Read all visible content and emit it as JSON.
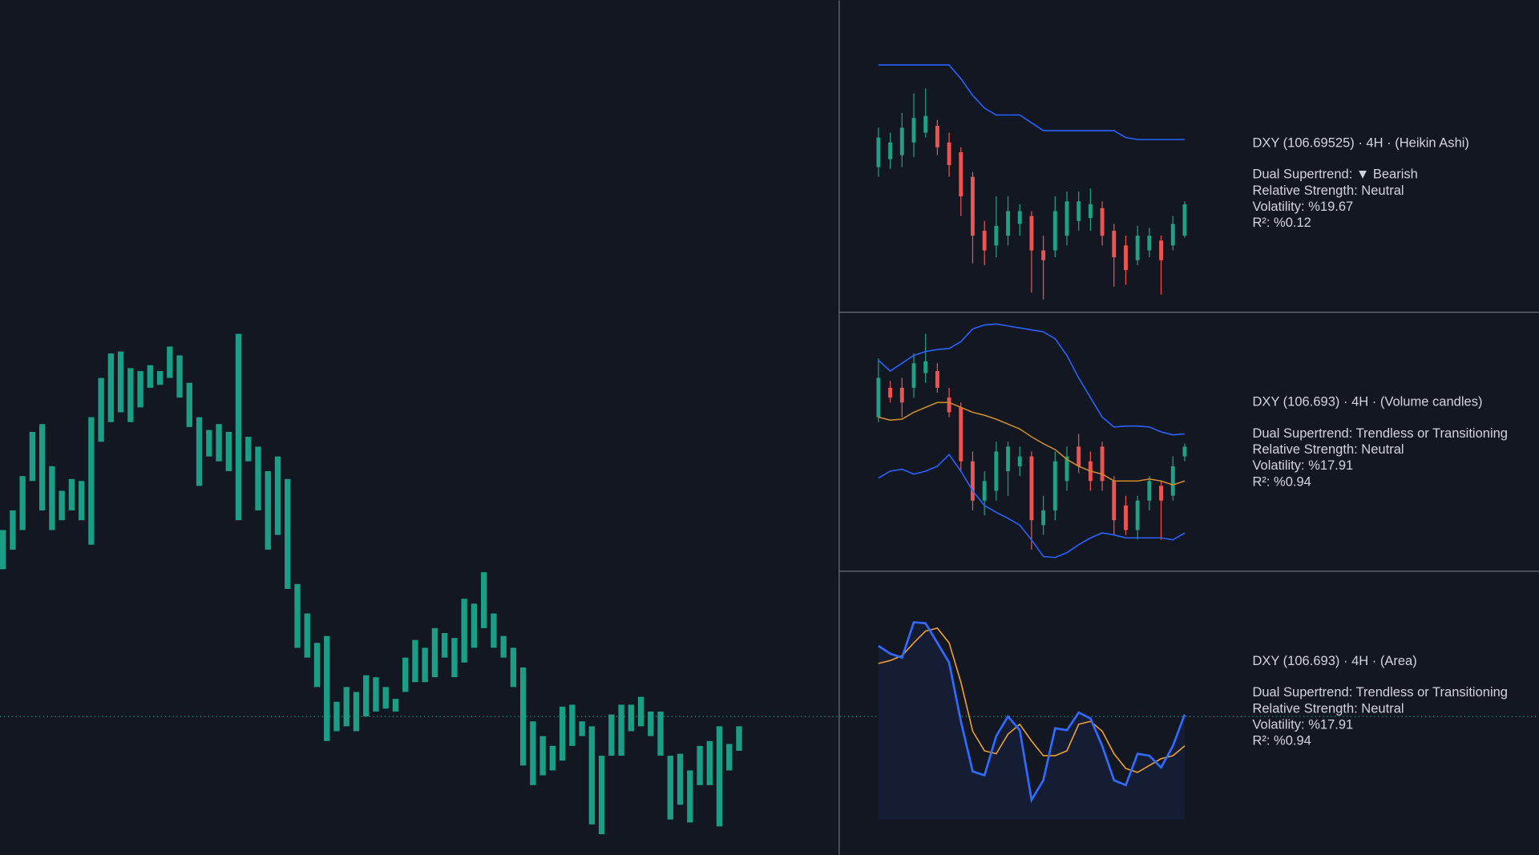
{
  "chart_data": [
    {
      "type": "range_bar",
      "color": "#1a9e85",
      "ylim": [
        129,
        1000
      ],
      "price_line": 270,
      "high": [
        460,
        480,
        515,
        560,
        568,
        525,
        500,
        512,
        510,
        575,
        615,
        640,
        642,
        625,
        622,
        628,
        622,
        647,
        638,
        610,
        575,
        562,
        568,
        560,
        660,
        555,
        545,
        520,
        535,
        512,
        405,
        375,
        345,
        352,
        285,
        300,
        295,
        312,
        310,
        300,
        288,
        330,
        348,
        340,
        360,
        355,
        350,
        390,
        385,
        417,
        375,
        352,
        340,
        320,
        265,
        250,
        240,
        280,
        282,
        265,
        260,
        230,
        272,
        282,
        282,
        290,
        275,
        275,
        230,
        232,
        215,
        240,
        245,
        260,
        242,
        260
      ],
      "low": [
        420,
        440,
        460,
        510,
        480,
        460,
        470,
        480,
        470,
        445,
        550,
        570,
        580,
        570,
        585,
        605,
        608,
        615,
        595,
        565,
        505,
        535,
        530,
        520,
        470,
        530,
        480,
        440,
        455,
        400,
        340,
        330,
        300,
        245,
        255,
        260,
        255,
        270,
        275,
        278,
        275,
        295,
        305,
        305,
        310,
        330,
        310,
        325,
        340,
        360,
        340,
        330,
        300,
        220,
        200,
        210,
        215,
        225,
        240,
        250,
        160,
        150,
        230,
        230,
        255,
        260,
        250,
        230,
        165,
        180,
        162,
        200,
        200,
        158,
        215,
        235
      ]
    },
    {
      "type": "candlestick",
      "up_color": "#1ea185",
      "down_color": "#ef5350",
      "ylim": [
        690,
        960
      ],
      "open": [
        830,
        838,
        842,
        855,
        865,
        872,
        855,
        845,
        820,
        765,
        750,
        760,
        772,
        780,
        745,
        745,
        760,
        775,
        778,
        788,
        765,
        750,
        735,
        745,
        755,
        750,
        760
      ],
      "high": [
        870,
        865,
        885,
        905,
        910,
        878,
        865,
        850,
        825,
        775,
        800,
        800,
        792,
        785,
        760,
        800,
        805,
        805,
        808,
        795,
        772,
        760,
        770,
        768,
        760,
        780,
        795
      ],
      "low": [
        820,
        828,
        830,
        840,
        860,
        842,
        820,
        780,
        732,
        730,
        738,
        750,
        760,
        702,
        695,
        738,
        750,
        765,
        765,
        750,
        708,
        710,
        730,
        738,
        700,
        745,
        758
      ],
      "close": [
        860,
        855,
        870,
        880,
        882,
        850,
        832,
        800,
        760,
        745,
        770,
        785,
        785,
        745,
        735,
        785,
        795,
        795,
        792,
        760,
        738,
        725,
        760,
        760,
        735,
        772,
        792
      ],
      "lines": [
        {
          "color": "#2962ff",
          "values": [
            934,
            934,
            934,
            934,
            934,
            934,
            934,
            920,
            903,
            890,
            883,
            883,
            883,
            875,
            867,
            867,
            867,
            867,
            867,
            867,
            867,
            860,
            858,
            858,
            858,
            858,
            858
          ]
        }
      ]
    },
    {
      "type": "candlestick",
      "up_color": "#1ea185",
      "down_color": "#ef5350",
      "ylim": [
        420,
        680
      ],
      "open": [
        575,
        605,
        605,
        605,
        620,
        622,
        595,
        585,
        530,
        490,
        500,
        520,
        525,
        535,
        465,
        480,
        510,
        545,
        530,
        545,
        510,
        485,
        460,
        490,
        505,
        495,
        535
      ],
      "high": [
        635,
        612,
        615,
        640,
        660,
        630,
        605,
        590,
        540,
        520,
        550,
        550,
        545,
        540,
        495,
        540,
        545,
        558,
        540,
        550,
        515,
        495,
        495,
        515,
        510,
        535,
        548
      ],
      "low": [
        570,
        590,
        575,
        595,
        610,
        600,
        575,
        520,
        480,
        475,
        490,
        495,
        515,
        440,
        455,
        470,
        500,
        518,
        500,
        500,
        455,
        455,
        450,
        480,
        450,
        490,
        530
      ],
      "close": [
        615,
        595,
        590,
        630,
        632,
        605,
        580,
        530,
        490,
        510,
        540,
        545,
        535,
        470,
        480,
        530,
        535,
        525,
        510,
        510,
        470,
        460,
        490,
        510,
        490,
        525,
        545
      ],
      "lines": [
        {
          "color": "#2962ff",
          "values": [
            633,
            622,
            630,
            638,
            642,
            644,
            645,
            652,
            665,
            669,
            670,
            668,
            666,
            664,
            662,
            655,
            638,
            615,
            595,
            575,
            565,
            566,
            566,
            565,
            560,
            557,
            558
          ]
        },
        {
          "color": "#c98a2a",
          "values": [
            575,
            572,
            573,
            580,
            585,
            590,
            590,
            585,
            580,
            577,
            573,
            568,
            563,
            555,
            548,
            542,
            532,
            525,
            520,
            517,
            510,
            510,
            510,
            512,
            510,
            506,
            510
          ]
        },
        {
          "color": "#2962ff",
          "values": [
            513,
            520,
            522,
            517,
            520,
            525,
            537,
            520,
            500,
            485,
            478,
            472,
            465,
            450,
            433,
            432,
            437,
            445,
            452,
            457,
            455,
            452,
            452,
            452,
            452,
            450,
            457
          ]
        }
      ]
    },
    {
      "type": "area",
      "ylim": [
        165,
        410
      ],
      "fill": "#151d35",
      "lines": [
        {
          "color": "#2f6bff",
          "values": [
            342,
            334,
            330,
            366,
            365,
            345,
            325,
            265,
            214,
            210,
            250,
            270,
            256,
            185,
            205,
            258,
            256,
            274,
            268,
            240,
            205,
            200,
            232,
            230,
            218,
            240,
            272
          ]
        },
        {
          "color": "#f0a030",
          "values": [
            324,
            327,
            332,
            345,
            357,
            360,
            345,
            305,
            255,
            235,
            232,
            252,
            262,
            245,
            230,
            230,
            235,
            262,
            265,
            255,
            232,
            217,
            213,
            220,
            227,
            230,
            240
          ]
        }
      ]
    }
  ],
  "panels": [
    {
      "title": "DXY (106.69525) · 4H · (Heikin Ashi)",
      "lines": [
        "Dual Supertrend: ▼ Bearish",
        "Relative Strength: Neutral",
        "Volatility: %19.67",
        "R²: %0.12"
      ]
    },
    {
      "title": "DXY (106.693) · 4H · (Volume candles)",
      "lines": [
        "Dual Supertrend: Trendless or Transitioning",
        "Relative Strength: Neutral",
        "Volatility: %17.91",
        "R²: %0.94"
      ]
    },
    {
      "title": "DXY (106.693) · 4H · (Area)",
      "lines": [
        "Dual Supertrend: Trendless or Transitioning",
        "Relative Strength: Neutral",
        "Volatility: %17.91",
        "R²: %0.94"
      ]
    }
  ]
}
